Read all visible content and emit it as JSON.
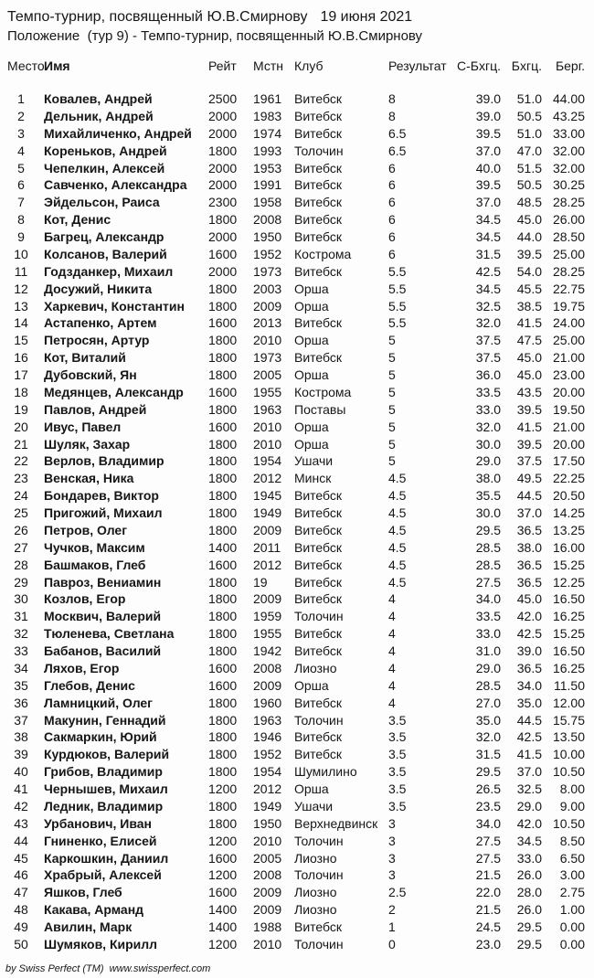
{
  "page": {
    "title": "Темпо-турнир, посвященный Ю.В.Смирнову",
    "title_date": "19 июня 2021",
    "subtitle": "Положение  (тур 9) - Темпо-турнир, посвященный Ю.В.Смирнову",
    "footer": "by Swiss Perfect (TM)  www.swissperfect.com"
  },
  "table": {
    "headers": [
      "Место",
      "Имя",
      "Рейт",
      "Мстн",
      "Клуб",
      "Результат",
      "С-Бхгц.",
      "Бхгц.",
      "Берг."
    ],
    "rows": [
      [
        "1",
        "Ковалев, Андрей",
        "2500",
        "1961",
        "Витебск",
        "8",
        "39.0",
        "51.0",
        "44.00"
      ],
      [
        "2",
        "Дельник, Андрей",
        "2000",
        "1983",
        "Витебск",
        "8",
        "39.0",
        "50.5",
        "43.25"
      ],
      [
        "3",
        "Михайличенко, Андрей",
        "2000",
        "1974",
        "Витебск",
        "6.5",
        "39.5",
        "51.0",
        "33.00"
      ],
      [
        "4",
        "Кореньков, Андрей",
        "1800",
        "1993",
        "Толочин",
        "6.5",
        "37.0",
        "47.0",
        "32.00"
      ],
      [
        "5",
        "Чепелкин, Алексей",
        "2000",
        "1953",
        "Витебск",
        "6",
        "40.0",
        "51.5",
        "32.00"
      ],
      [
        "6",
        "Савченко, Александра",
        "2000",
        "1991",
        "Витебск",
        "6",
        "39.5",
        "50.5",
        "30.25"
      ],
      [
        "7",
        "Эйдельсон, Раиса",
        "2300",
        "1958",
        "Витебск",
        "6",
        "37.0",
        "48.5",
        "28.25"
      ],
      [
        "8",
        "Кот, Денис",
        "1800",
        "2008",
        "Витебск",
        "6",
        "34.5",
        "45.0",
        "26.00"
      ],
      [
        "9",
        "Багрец, Александр",
        "2000",
        "1950",
        "Витебск",
        "6",
        "34.5",
        "44.0",
        "28.50"
      ],
      [
        "10",
        "Колсанов, Валерий",
        "1600",
        "1952",
        "Кострома",
        "6",
        "31.5",
        "39.5",
        "25.00"
      ],
      [
        "11",
        "Годзданкер, Михаил",
        "2000",
        "1973",
        "Витебск",
        "5.5",
        "42.5",
        "54.0",
        "28.25"
      ],
      [
        "12",
        "Досужий, Никита",
        "1800",
        "2003",
        "Орша",
        "5.5",
        "34.5",
        "45.5",
        "22.75"
      ],
      [
        "13",
        "Харкевич, Константин",
        "1800",
        "2009",
        "Орша",
        "5.5",
        "32.5",
        "38.5",
        "19.75"
      ],
      [
        "14",
        "Астапенко, Артем",
        "1600",
        "2013",
        "Витебск",
        "5.5",
        "32.0",
        "41.5",
        "24.00"
      ],
      [
        "15",
        "Петросян, Артур",
        "1800",
        "2010",
        "Орша",
        "5",
        "37.5",
        "47.5",
        "25.00"
      ],
      [
        "16",
        "Кот, Виталий",
        "1800",
        "1973",
        "Витебск",
        "5",
        "37.5",
        "45.0",
        "21.00"
      ],
      [
        "17",
        "Дубовский, Ян",
        "1800",
        "2005",
        "Орша",
        "5",
        "36.0",
        "45.0",
        "23.00"
      ],
      [
        "18",
        "Медянцев, Александр",
        "1600",
        "1955",
        "Кострома",
        "5",
        "33.5",
        "43.5",
        "20.00"
      ],
      [
        "19",
        "Павлов, Андрей",
        "1800",
        "1963",
        "Поставы",
        "5",
        "33.0",
        "39.5",
        "19.50"
      ],
      [
        "20",
        "Ивус, Павел",
        "1600",
        "2010",
        "Орша",
        "5",
        "32.0",
        "41.5",
        "21.00"
      ],
      [
        "21",
        "Шуляк, Захар",
        "1800",
        "2010",
        "Орша",
        "5",
        "30.0",
        "39.5",
        "20.00"
      ],
      [
        "22",
        "Верлов, Владимир",
        "1800",
        "1954",
        "Ушачи",
        "5",
        "29.0",
        "37.5",
        "17.50"
      ],
      [
        "23",
        "Венская, Ника",
        "1800",
        "2012",
        "Минск",
        "4.5",
        "38.0",
        "49.5",
        "22.25"
      ],
      [
        "24",
        "Бондарев, Виктор",
        "1800",
        "1945",
        "Витебск",
        "4.5",
        "35.5",
        "44.5",
        "20.50"
      ],
      [
        "25",
        "Пригожий, Михаил",
        "1800",
        "1949",
        "Витебск",
        "4.5",
        "30.0",
        "37.0",
        "14.25"
      ],
      [
        "26",
        "Петров, Олег",
        "1800",
        "2009",
        "Витебск",
        "4.5",
        "29.5",
        "36.5",
        "13.25"
      ],
      [
        "27",
        "Чучков, Максим",
        "1400",
        "2011",
        "Витебск",
        "4.5",
        "28.5",
        "38.0",
        "16.00"
      ],
      [
        "28",
        "Башмаков, Глеб",
        "1600",
        "2012",
        "Витебск",
        "4.5",
        "28.5",
        "36.5",
        "15.25"
      ],
      [
        "29",
        "Павроз, Вениамин",
        "1800",
        "19",
        "Витебск",
        "4.5",
        "27.5",
        "36.5",
        "12.25"
      ],
      [
        "30",
        "Козлов, Егор",
        "1800",
        "2009",
        "Витебск",
        "4",
        "34.0",
        "45.0",
        "16.50"
      ],
      [
        "31",
        "Москвич, Валерий",
        "1800",
        "1959",
        "Толочин",
        "4",
        "33.5",
        "42.0",
        "16.25"
      ],
      [
        "32",
        "Тюленева, Светлана",
        "1800",
        "1955",
        "Витебск",
        "4",
        "33.0",
        "42.5",
        "15.25"
      ],
      [
        "33",
        "Бабанов, Василий",
        "1800",
        "1942",
        "Витебск",
        "4",
        "31.0",
        "39.0",
        "16.50"
      ],
      [
        "34",
        "Ляхов, Егор",
        "1600",
        "2008",
        "Лиозно",
        "4",
        "29.0",
        "36.5",
        "16.25"
      ],
      [
        "35",
        "Глебов, Денис",
        "1600",
        "2009",
        "Орша",
        "4",
        "28.5",
        "34.0",
        "11.50"
      ],
      [
        "36",
        "Ламницкий, Олег",
        "1800",
        "1960",
        "Витебск",
        "4",
        "27.0",
        "35.0",
        "12.00"
      ],
      [
        "37",
        "Макунин, Геннадий",
        "1800",
        "1963",
        "Толочин",
        "3.5",
        "35.0",
        "44.5",
        "15.75"
      ],
      [
        "38",
        "Сакмаркин, Юрий",
        "1800",
        "1946",
        "Витебск",
        "3.5",
        "32.0",
        "42.5",
        "13.50"
      ],
      [
        "39",
        "Курдюков, Валерий",
        "1800",
        "1952",
        "Витебск",
        "3.5",
        "31.5",
        "41.5",
        "10.00"
      ],
      [
        "40",
        "Грибов, Владимир",
        "1800",
        "1954",
        "Шумилино",
        "3.5",
        "29.5",
        "37.0",
        "10.50"
      ],
      [
        "41",
        "Чернышев, Михаил",
        "1200",
        "2012",
        "Орша",
        "3.5",
        "26.5",
        "32.5",
        "8.00"
      ],
      [
        "42",
        "Ледник, Владимир",
        "1800",
        "1949",
        "Ушачи",
        "3.5",
        "23.5",
        "29.0",
        "9.00"
      ],
      [
        "43",
        "Урбанович, Иван",
        "1800",
        "1950",
        "Верхнедвинск",
        "3",
        "34.0",
        "42.0",
        "10.50"
      ],
      [
        "44",
        "Гниненко, Елисей",
        "1200",
        "2010",
        "Толочин",
        "3",
        "27.5",
        "34.5",
        "8.50"
      ],
      [
        "45",
        "Каркошкин, Даниил",
        "1600",
        "2005",
        "Лиозно",
        "3",
        "27.5",
        "33.0",
        "6.50"
      ],
      [
        "46",
        "Храбрый, Алексей",
        "1200",
        "2008",
        "Толочин",
        "3",
        "21.5",
        "26.0",
        "3.00"
      ],
      [
        "47",
        "Яшков, Глеб",
        "1600",
        "2009",
        "Лиозно",
        "2.5",
        "22.0",
        "28.0",
        "2.75"
      ],
      [
        "48",
        "Какава, Арманд",
        "1400",
        "2009",
        "Лиозно",
        "2",
        "21.5",
        "26.0",
        "1.00"
      ],
      [
        "49",
        "Авилин, Марк",
        "1400",
        "1988",
        "Витебск",
        "1",
        "24.5",
        "29.5",
        "0.00"
      ],
      [
        "50",
        "Шумяков, Кирилл",
        "1200",
        "2010",
        "Толочин",
        "0",
        "23.0",
        "29.5",
        "0.00"
      ]
    ]
  }
}
